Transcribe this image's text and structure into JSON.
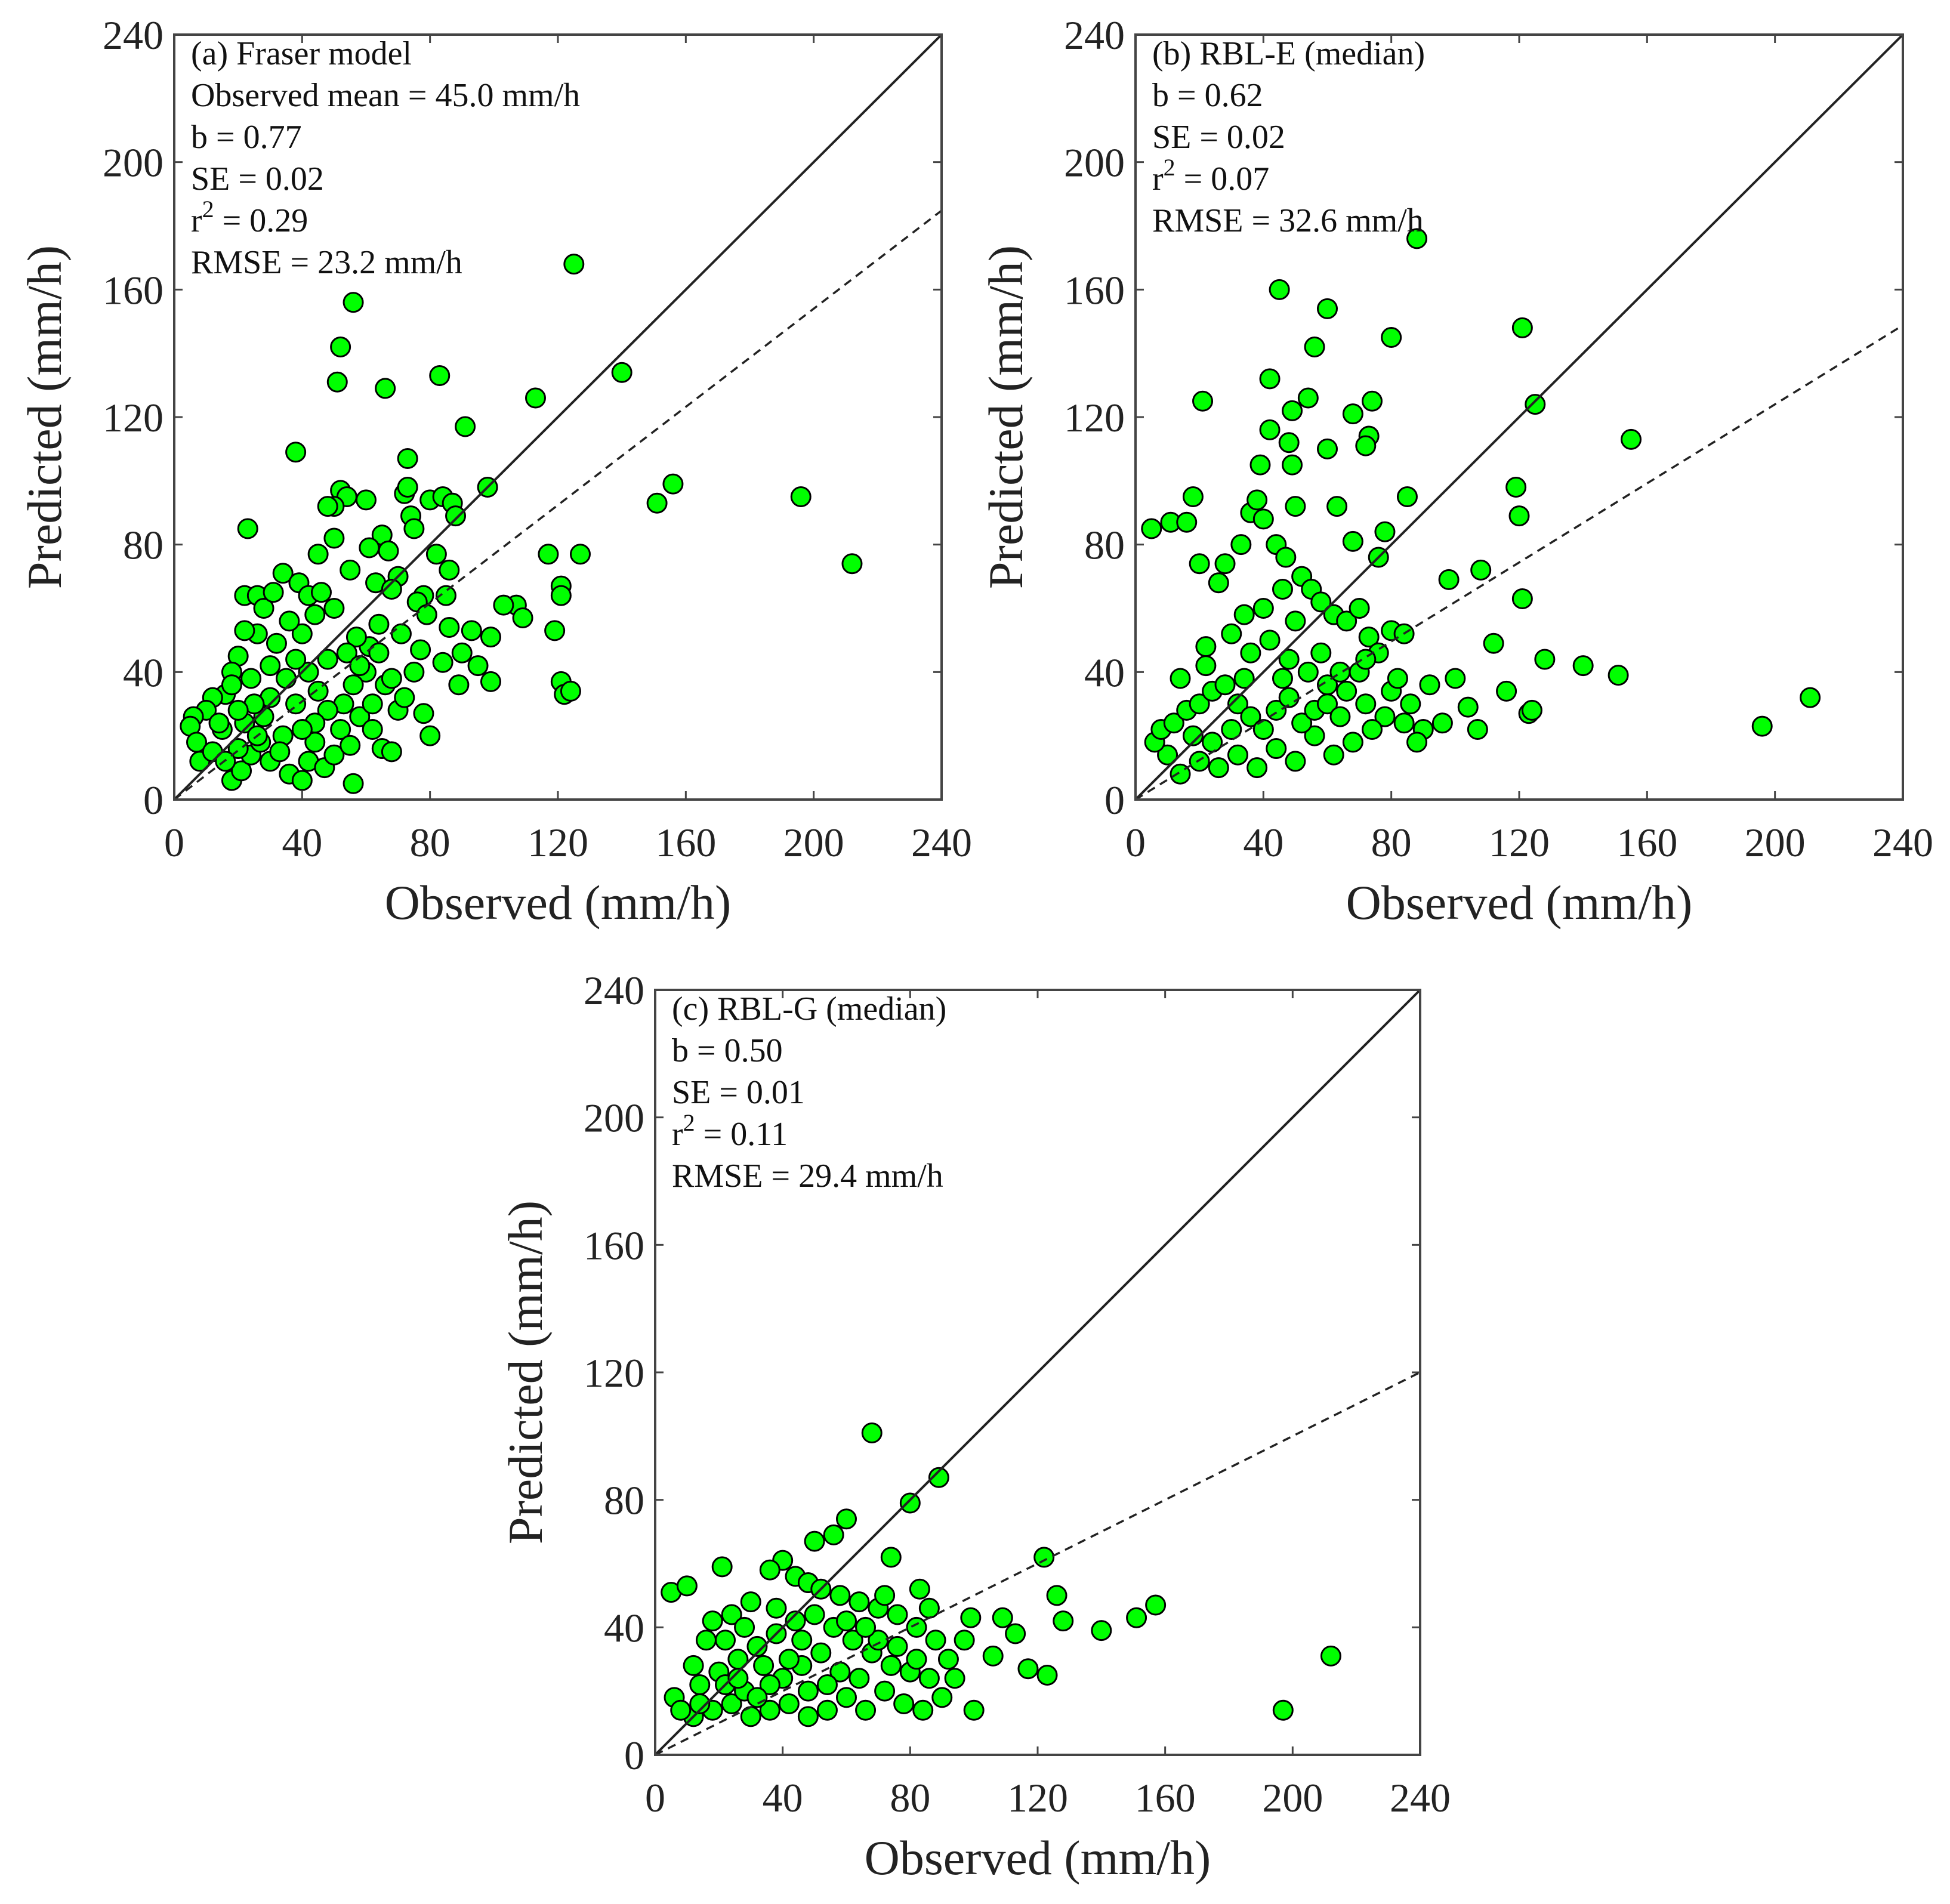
{
  "chart_data": [
    {
      "type": "scatter",
      "panel_label": "(a) Fraser model",
      "annotations": [
        "Observed mean = 45.0 mm/h",
        "b = 0.77",
        "SE = 0.02",
        "r2 = 0.29",
        "RMSE = 23.2 mm/h"
      ],
      "xlabel": "Observed (mm/h)",
      "ylabel": "Predicted (mm/h)",
      "xlim": [
        0,
        240
      ],
      "ylim": [
        0,
        240
      ],
      "ticks": [
        "0",
        "40",
        "80",
        "120",
        "160",
        "200",
        "240"
      ],
      "slope": 0.77,
      "points": [
        [
          125,
          168
        ],
        [
          56,
          156
        ],
        [
          52,
          142
        ],
        [
          51,
          131
        ],
        [
          66,
          129
        ],
        [
          83,
          133
        ],
        [
          140,
          134
        ],
        [
          113,
          126
        ],
        [
          91,
          117
        ],
        [
          38,
          109
        ],
        [
          73,
          107
        ],
        [
          156,
          99
        ],
        [
          151,
          93
        ],
        [
          196,
          95
        ],
        [
          212,
          74
        ],
        [
          127,
          77
        ],
        [
          117,
          77
        ],
        [
          121,
          67
        ],
        [
          121,
          64
        ],
        [
          119,
          53
        ],
        [
          121,
          37
        ],
        [
          122,
          33
        ],
        [
          124,
          34
        ],
        [
          23,
          85
        ],
        [
          98,
          98
        ],
        [
          107,
          61
        ],
        [
          103,
          61
        ],
        [
          109,
          57
        ],
        [
          99,
          51
        ],
        [
          99,
          37
        ],
        [
          89,
          36
        ],
        [
          80,
          20
        ],
        [
          56,
          5
        ],
        [
          61,
          48
        ],
        [
          52,
          97
        ],
        [
          54,
          95
        ],
        [
          50,
          92
        ],
        [
          48,
          92
        ],
        [
          60,
          94
        ],
        [
          72,
          96
        ],
        [
          73,
          98
        ],
        [
          80,
          94
        ],
        [
          84,
          95
        ],
        [
          87,
          93
        ],
        [
          88,
          89
        ],
        [
          74,
          89
        ],
        [
          75,
          85
        ],
        [
          65,
          83
        ],
        [
          50,
          82
        ],
        [
          45,
          77
        ],
        [
          67,
          78
        ],
        [
          82,
          77
        ],
        [
          86,
          72
        ],
        [
          85,
          64
        ],
        [
          78,
          64
        ],
        [
          70,
          70
        ],
        [
          34,
          71
        ],
        [
          39,
          68
        ],
        [
          42,
          64
        ],
        [
          22,
          64
        ],
        [
          26,
          64
        ],
        [
          28,
          60
        ],
        [
          31,
          65
        ],
        [
          55,
          72
        ],
        [
          61,
          79
        ],
        [
          63,
          68
        ],
        [
          68,
          66
        ],
        [
          76,
          62
        ],
        [
          79,
          58
        ],
        [
          86,
          54
        ],
        [
          93,
          53
        ],
        [
          95,
          42
        ],
        [
          90,
          46
        ],
        [
          84,
          43
        ],
        [
          77,
          47
        ],
        [
          71,
          52
        ],
        [
          64,
          55
        ],
        [
          57,
          51
        ],
        [
          50,
          60
        ],
        [
          46,
          65
        ],
        [
          44,
          58
        ],
        [
          40,
          52
        ],
        [
          36,
          56
        ],
        [
          32,
          49
        ],
        [
          26,
          52
        ],
        [
          22,
          53
        ],
        [
          20,
          45
        ],
        [
          18,
          40
        ],
        [
          16,
          33
        ],
        [
          12,
          32
        ],
        [
          10,
          28
        ],
        [
          6,
          26
        ],
        [
          5,
          23
        ],
        [
          7,
          18
        ],
        [
          8,
          12
        ],
        [
          12,
          15
        ],
        [
          15,
          22
        ],
        [
          18,
          6
        ],
        [
          21,
          9
        ],
        [
          24,
          14
        ],
        [
          27,
          18
        ],
        [
          30,
          12
        ],
        [
          34,
          20
        ],
        [
          36,
          8
        ],
        [
          40,
          6
        ],
        [
          42,
          12
        ],
        [
          44,
          18
        ],
        [
          47,
          10
        ],
        [
          50,
          14
        ],
        [
          52,
          22
        ],
        [
          55,
          17
        ],
        [
          58,
          26
        ],
        [
          62,
          30
        ],
        [
          65,
          16
        ],
        [
          68,
          15
        ],
        [
          70,
          28
        ],
        [
          72,
          32
        ],
        [
          66,
          36
        ],
        [
          60,
          40
        ],
        [
          56,
          36
        ],
        [
          53,
          30
        ],
        [
          48,
          28
        ],
        [
          45,
          34
        ],
        [
          42,
          40
        ],
        [
          38,
          44
        ],
        [
          35,
          38
        ],
        [
          30,
          32
        ],
        [
          28,
          26
        ],
        [
          25,
          30
        ],
        [
          22,
          24
        ],
        [
          20,
          28
        ],
        [
          18,
          36
        ],
        [
          14,
          24
        ],
        [
          24,
          38
        ],
        [
          30,
          42
        ],
        [
          38,
          30
        ],
        [
          44,
          24
        ],
        [
          48,
          44
        ],
        [
          54,
          46
        ],
        [
          58,
          42
        ],
        [
          64,
          46
        ],
        [
          68,
          38
        ],
        [
          75,
          40
        ],
        [
          78,
          27
        ],
        [
          62,
          22
        ],
        [
          40,
          22
        ],
        [
          33,
          15
        ],
        [
          26,
          20
        ],
        [
          20,
          16
        ],
        [
          16,
          12
        ]
      ]
    },
    {
      "type": "scatter",
      "panel_label": "(b) RBL-E (median)",
      "annotations": [
        "b = 0.62",
        "SE = 0.02",
        "r2 = 0.07",
        "RMSE = 32.6 mm/h"
      ],
      "xlabel": "Observed (mm/h)",
      "ylabel": "Predicted (mm/h)",
      "xlim": [
        0,
        240
      ],
      "ylim": [
        0,
        240
      ],
      "ticks": [
        "0",
        "40",
        "80",
        "120",
        "160",
        "200",
        "240"
      ],
      "slope": 0.62,
      "points": [
        [
          88,
          176
        ],
        [
          45,
          160
        ],
        [
          60,
          154
        ],
        [
          121,
          148
        ],
        [
          56,
          142
        ],
        [
          80,
          145
        ],
        [
          42,
          132
        ],
        [
          21,
          125
        ],
        [
          74,
          125
        ],
        [
          125,
          124
        ],
        [
          54,
          126
        ],
        [
          68,
          121
        ],
        [
          49,
          122
        ],
        [
          42,
          116
        ],
        [
          73,
          114
        ],
        [
          72,
          111
        ],
        [
          48,
          112
        ],
        [
          155,
          113
        ],
        [
          60,
          110
        ],
        [
          39,
          105
        ],
        [
          49,
          105
        ],
        [
          119,
          98
        ],
        [
          85,
          95
        ],
        [
          18,
          95
        ],
        [
          63,
          92
        ],
        [
          50,
          92
        ],
        [
          120,
          89
        ],
        [
          5,
          85
        ],
        [
          11,
          87
        ],
        [
          16,
          87
        ],
        [
          36,
          90
        ],
        [
          68,
          81
        ],
        [
          108,
          72
        ],
        [
          98,
          69
        ],
        [
          121,
          63
        ],
        [
          112,
          49
        ],
        [
          128,
          44
        ],
        [
          140,
          42
        ],
        [
          151,
          39
        ],
        [
          116,
          34
        ],
        [
          196,
          23
        ],
        [
          211,
          32
        ],
        [
          123,
          27
        ],
        [
          124,
          28
        ],
        [
          104,
          29
        ],
        [
          107,
          22
        ],
        [
          80,
          53
        ],
        [
          84,
          52
        ],
        [
          73,
          51
        ],
        [
          38,
          94
        ],
        [
          40,
          88
        ],
        [
          44,
          80
        ],
        [
          47,
          76
        ],
        [
          52,
          70
        ],
        [
          55,
          66
        ],
        [
          58,
          62
        ],
        [
          62,
          58
        ],
        [
          66,
          56
        ],
        [
          70,
          60
        ],
        [
          76,
          76
        ],
        [
          78,
          84
        ],
        [
          33,
          80
        ],
        [
          28,
          74
        ],
        [
          20,
          74
        ],
        [
          26,
          68
        ],
        [
          30,
          52
        ],
        [
          22,
          48
        ],
        [
          36,
          46
        ],
        [
          42,
          50
        ],
        [
          48,
          44
        ],
        [
          54,
          40
        ],
        [
          60,
          36
        ],
        [
          66,
          34
        ],
        [
          72,
          30
        ],
        [
          78,
          26
        ],
        [
          84,
          24
        ],
        [
          90,
          22
        ],
        [
          96,
          24
        ],
        [
          100,
          38
        ],
        [
          92,
          36
        ],
        [
          86,
          30
        ],
        [
          80,
          34
        ],
        [
          74,
          22
        ],
        [
          68,
          18
        ],
        [
          62,
          14
        ],
        [
          56,
          20
        ],
        [
          50,
          12
        ],
        [
          44,
          16
        ],
        [
          38,
          10
        ],
        [
          32,
          14
        ],
        [
          26,
          10
        ],
        [
          20,
          12
        ],
        [
          14,
          8
        ],
        [
          10,
          14
        ],
        [
          6,
          18
        ],
        [
          8,
          22
        ],
        [
          12,
          24
        ],
        [
          16,
          28
        ],
        [
          20,
          30
        ],
        [
          24,
          34
        ],
        [
          28,
          36
        ],
        [
          32,
          30
        ],
        [
          36,
          26
        ],
        [
          40,
          22
        ],
        [
          44,
          28
        ],
        [
          48,
          32
        ],
        [
          52,
          24
        ],
        [
          56,
          28
        ],
        [
          60,
          30
        ],
        [
          64,
          26
        ],
        [
          70,
          40
        ],
        [
          76,
          46
        ],
        [
          82,
          38
        ],
        [
          88,
          18
        ],
        [
          18,
          20
        ],
        [
          24,
          18
        ],
        [
          30,
          22
        ],
        [
          34,
          38
        ],
        [
          46,
          38
        ],
        [
          58,
          46
        ],
        [
          40,
          60
        ],
        [
          46,
          66
        ],
        [
          34,
          58
        ],
        [
          14,
          38
        ],
        [
          22,
          42
        ],
        [
          50,
          56
        ],
        [
          64,
          40
        ],
        [
          72,
          44
        ]
      ]
    },
    {
      "type": "scatter",
      "panel_label": "(c) RBL-G (median)",
      "annotations": [
        "b = 0.50",
        "SE = 0.01",
        "r2 = 0.11",
        "RMSE = 29.4 mm/h"
      ],
      "xlabel": "Observed (mm/h)",
      "ylabel": "Predicted (mm/h)",
      "xlim": [
        0,
        240
      ],
      "ylim": [
        0,
        240
      ],
      "ticks": [
        "0",
        "40",
        "80",
        "120",
        "160",
        "200",
        "240"
      ],
      "slope": 0.5,
      "points": [
        [
          68,
          101
        ],
        [
          89,
          87
        ],
        [
          80,
          79
        ],
        [
          60,
          74
        ],
        [
          56,
          69
        ],
        [
          50,
          67
        ],
        [
          122,
          62
        ],
        [
          74,
          62
        ],
        [
          21,
          59
        ],
        [
          126,
          50
        ],
        [
          5,
          51
        ],
        [
          10,
          53
        ],
        [
          128,
          42
        ],
        [
          140,
          39
        ],
        [
          151,
          43
        ],
        [
          157,
          47
        ],
        [
          212,
          31
        ],
        [
          197,
          14
        ],
        [
          100,
          14
        ],
        [
          117,
          27
        ],
        [
          123,
          25
        ],
        [
          113,
          38
        ],
        [
          109,
          43
        ],
        [
          99,
          43
        ],
        [
          106,
          31
        ],
        [
          83,
          52
        ],
        [
          86,
          46
        ],
        [
          97,
          36
        ],
        [
          40,
          61
        ],
        [
          36,
          58
        ],
        [
          44,
          56
        ],
        [
          48,
          54
        ],
        [
          52,
          52
        ],
        [
          58,
          50
        ],
        [
          64,
          48
        ],
        [
          70,
          46
        ],
        [
          76,
          44
        ],
        [
          82,
          40
        ],
        [
          88,
          36
        ],
        [
          92,
          30
        ],
        [
          94,
          24
        ],
        [
          90,
          18
        ],
        [
          84,
          14
        ],
        [
          78,
          16
        ],
        [
          72,
          20
        ],
        [
          66,
          14
        ],
        [
          60,
          18
        ],
        [
          54,
          14
        ],
        [
          48,
          12
        ],
        [
          42,
          16
        ],
        [
          36,
          14
        ],
        [
          30,
          12
        ],
        [
          24,
          16
        ],
        [
          18,
          14
        ],
        [
          12,
          12
        ],
        [
          6,
          18
        ],
        [
          8,
          14
        ],
        [
          14,
          22
        ],
        [
          20,
          26
        ],
        [
          26,
          30
        ],
        [
          32,
          34
        ],
        [
          38,
          38
        ],
        [
          44,
          42
        ],
        [
          50,
          44
        ],
        [
          56,
          40
        ],
        [
          62,
          36
        ],
        [
          68,
          32
        ],
        [
          74,
          28
        ],
        [
          80,
          26
        ],
        [
          86,
          24
        ],
        [
          30,
          48
        ],
        [
          24,
          44
        ],
        [
          18,
          42
        ],
        [
          16,
          36
        ],
        [
          22,
          36
        ],
        [
          28,
          40
        ],
        [
          34,
          28
        ],
        [
          40,
          24
        ],
        [
          46,
          28
        ],
        [
          52,
          32
        ],
        [
          58,
          26
        ],
        [
          64,
          24
        ],
        [
          70,
          36
        ],
        [
          76,
          34
        ],
        [
          82,
          30
        ],
        [
          60,
          42
        ],
        [
          54,
          22
        ],
        [
          48,
          20
        ],
        [
          42,
          30
        ],
        [
          36,
          22
        ],
        [
          28,
          20
        ],
        [
          22,
          22
        ],
        [
          12,
          28
        ],
        [
          14,
          16
        ],
        [
          66,
          40
        ],
        [
          72,
          50
        ],
        [
          38,
          46
        ],
        [
          46,
          36
        ],
        [
          32,
          18
        ],
        [
          26,
          24
        ]
      ]
    }
  ]
}
